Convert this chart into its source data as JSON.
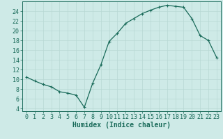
{
  "x": [
    0,
    1,
    2,
    3,
    4,
    5,
    6,
    7,
    8,
    9,
    10,
    11,
    12,
    13,
    14,
    15,
    16,
    17,
    18,
    19,
    20,
    21,
    22,
    23
  ],
  "y": [
    10.5,
    9.7,
    9.0,
    8.5,
    7.5,
    7.2,
    6.8,
    4.3,
    9.2,
    13.0,
    17.8,
    19.5,
    21.5,
    22.5,
    23.5,
    24.2,
    24.8,
    25.2,
    25.0,
    24.8,
    22.5,
    19.0,
    18.0,
    14.5
  ],
  "line_color": "#1a6b5a",
  "marker": "+",
  "marker_size": 3,
  "marker_linewidth": 0.8,
  "line_width": 0.9,
  "bg_color": "#ceeae7",
  "grid_color": "#b8d8d4",
  "xlabel": "Humidex (Indice chaleur)",
  "xlim": [
    -0.5,
    23.5
  ],
  "ylim": [
    3.5,
    26
  ],
  "yticks": [
    4,
    6,
    8,
    10,
    12,
    14,
    16,
    18,
    20,
    22,
    24
  ],
  "xticks": [
    0,
    1,
    2,
    3,
    4,
    5,
    6,
    7,
    8,
    9,
    10,
    11,
    12,
    13,
    14,
    15,
    16,
    17,
    18,
    19,
    20,
    21,
    22,
    23
  ],
  "tick_label_color": "#1a6b5a",
  "font_size": 6,
  "xlabel_fontsize": 7,
  "spine_color": "#1a6b5a"
}
